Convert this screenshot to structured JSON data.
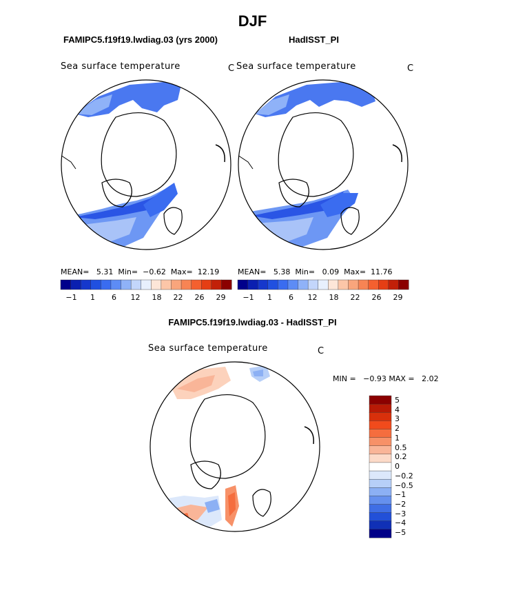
{
  "header": {
    "season": "DJF",
    "model_title": "FAMIPC5.f19f19.lwdiag.03 (yrs 2000)",
    "obs_title": "HadISST_PI",
    "diff_title": "FAMIPC5.f19f19.lwdiag.03 - HadISST_PI"
  },
  "panels": {
    "model": {
      "field_label": "Sea surface temperature",
      "unit": "C",
      "stats": "MEAN=   5.31  Min=  −0.62  Max=  12.19"
    },
    "obs": {
      "field_label": "Sea surface temperature",
      "unit": "C",
      "stats": "MEAN=   5.38  Min=   0.09  Max=  11.76"
    },
    "diff": {
      "field_label": "Sea surface temperature",
      "unit": "C",
      "stats": "MIN =   −0.93 MAX =   2.02"
    }
  },
  "colorbar_abs": {
    "colors": [
      "#00008b",
      "#0a1fb0",
      "#1537cc",
      "#2050e0",
      "#3a6cf0",
      "#5d8cf5",
      "#8fb2f8",
      "#c3d6fb",
      "#e8f0fd",
      "#fde6d8",
      "#fcc6a8",
      "#f9a57c",
      "#f78454",
      "#f4602f",
      "#e53e14",
      "#c22008",
      "#8b0000"
    ],
    "tick_labels": [
      "−1",
      "1",
      "6",
      "12",
      "18",
      "22",
      "26",
      "29"
    ]
  },
  "colorbar_diff": {
    "colors": [
      "#8b0000",
      "#b81a06",
      "#d8300b",
      "#f14b1c",
      "#f56d3e",
      "#f79168",
      "#f9b598",
      "#fcdac8",
      "#ffffff",
      "#dce8fb",
      "#b7cff8",
      "#8cb0f4",
      "#6590ee",
      "#3f6ee5",
      "#2250d8",
      "#1030b6",
      "#000088"
    ],
    "tick_labels": [
      "5",
      "4",
      "3",
      "2",
      "1",
      "0.5",
      "0.2",
      "0",
      "−0.2",
      "−0.5",
      "−1",
      "−2",
      "−3",
      "−4",
      "−5"
    ]
  }
}
